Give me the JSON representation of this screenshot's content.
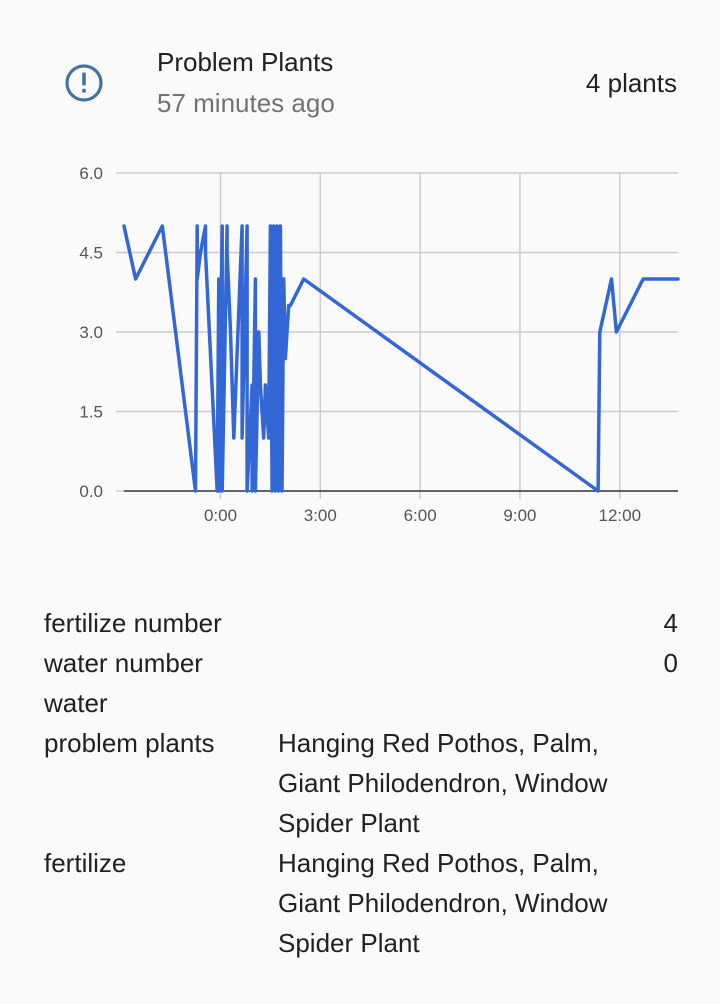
{
  "header": {
    "icon": "alert-circle-outline-icon",
    "title": "Problem Plants",
    "last_changed": "57 minutes ago",
    "state": "4 plants"
  },
  "colors": {
    "accent": "#3367d6",
    "icon": "#44739e",
    "grid": "#cccccc",
    "axis": "#555555",
    "secondary_text": "#727272"
  },
  "chart_data": {
    "type": "line",
    "title": "",
    "xlabel": "",
    "ylabel": "",
    "x_unit": "hours relative to 0:00",
    "xlim": [
      -2.9,
      13.75
    ],
    "ylim": [
      0,
      6
    ],
    "y_ticks": [
      0,
      1.5,
      3,
      4.5,
      6
    ],
    "y_tick_labels": [
      "0.0",
      "1.5",
      "3.0",
      "4.5",
      "6.0"
    ],
    "x_ticks": [
      0,
      3,
      6,
      9,
      12
    ],
    "x_tick_labels": [
      "0:00",
      "3:00",
      "6:00",
      "9:00",
      "12:00"
    ],
    "grid": true,
    "series": [
      {
        "x": [
          -2.9,
          -2.55,
          -1.75,
          -0.75,
          -0.7,
          -0.7,
          -0.6,
          -0.45,
          -0.45,
          -0.1,
          -0.05,
          -0.05,
          0.05,
          0.05,
          0.2,
          0.2,
          0.3,
          0.4,
          0.65,
          0.65,
          0.8,
          0.8,
          0.95,
          0.95,
          1.05,
          1.05,
          1.15,
          1.2,
          1.3,
          1.35,
          1.45,
          1.5,
          1.55,
          1.6,
          1.65,
          1.7,
          1.75,
          1.8,
          1.85,
          1.9,
          1.95,
          2.0,
          2.05,
          2.1,
          2.5,
          11.35,
          11.4,
          11.75,
          11.9,
          12.7,
          13.75
        ],
        "y": [
          5,
          4,
          5,
          0,
          5,
          4,
          4.5,
          5,
          4.5,
          0,
          4,
          0,
          5,
          0,
          5,
          4.5,
          3,
          1,
          5,
          1,
          5,
          0,
          2,
          0,
          4,
          0,
          3,
          2,
          1,
          2,
          1,
          5,
          0,
          5,
          0,
          5,
          0,
          5,
          0,
          4,
          2.5,
          3,
          3.5,
          3.5,
          4,
          0,
          3,
          4,
          3,
          4,
          4
        ]
      }
    ]
  },
  "attributes": [
    {
      "key": "fertilize number",
      "value": "4"
    },
    {
      "key": "water number",
      "value": "0"
    },
    {
      "key": "water",
      "value": ""
    },
    {
      "key": "problem plants",
      "value": "Hanging Red Pothos, Palm, Giant Philodendron, Window Spider Plant"
    },
    {
      "key": "fertilize",
      "value": "Hanging Red Pothos, Palm, Giant Philodendron, Window Spider Plant"
    }
  ]
}
